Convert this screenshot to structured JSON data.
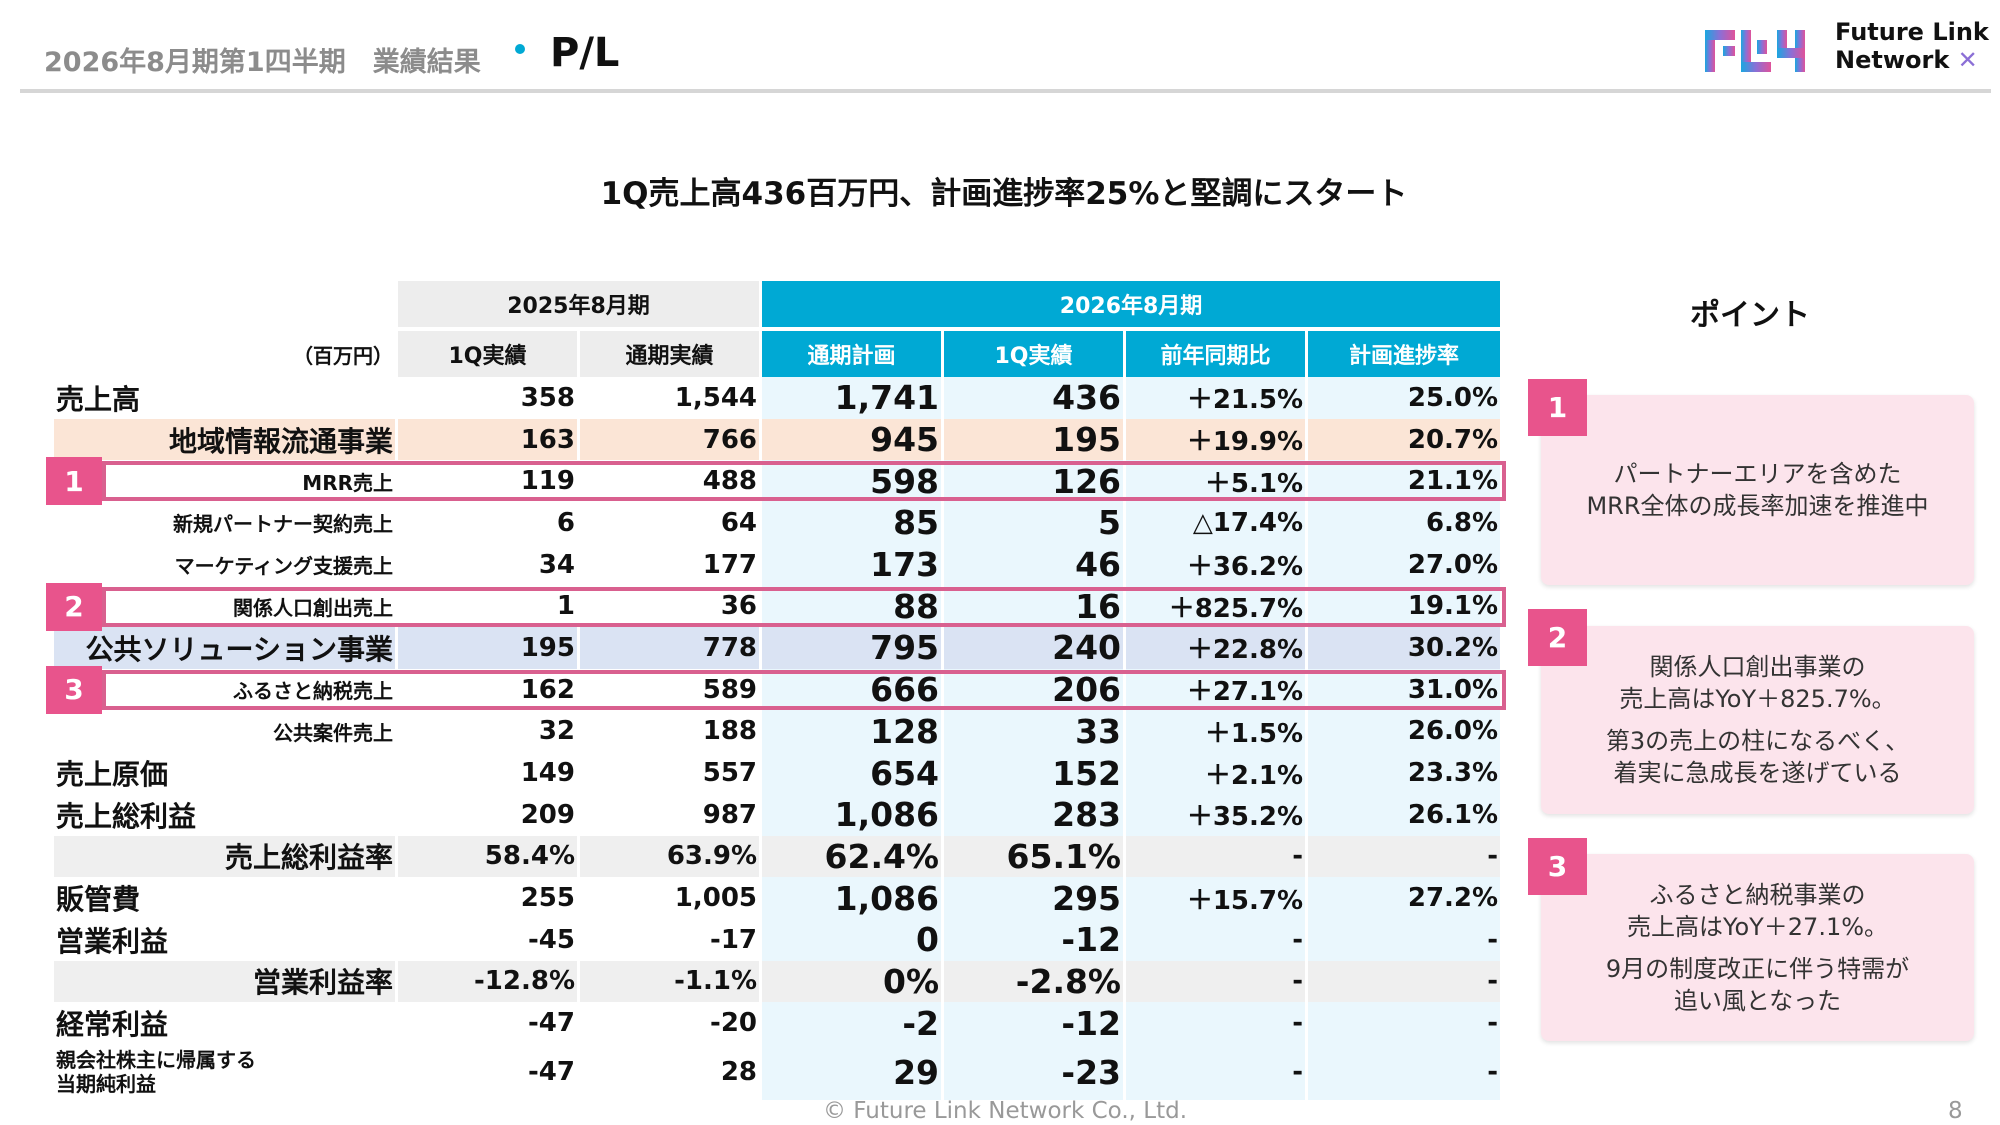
{
  "header": {
    "title": "2026年8月期第1四半期　業績結果",
    "section": "P/L",
    "logo_text_1": "Future Link",
    "logo_text_2": "Network"
  },
  "headline": "1Q売上高436百万円、計画進捗率25%と堅調にスタート",
  "table": {
    "unit": "（百万円）",
    "group_2025": "2025年8月期",
    "group_2026": "2026年8月期",
    "columns": [
      "1Q実績",
      "通期実績",
      "通期計画",
      "1Q実績",
      "前年同期比",
      "計画進捗率"
    ],
    "rows": [
      {
        "label": "売上高",
        "values": [
          "358",
          "1,544",
          "1,741",
          "436",
          "＋21.5%",
          "25.0%"
        ]
      },
      {
        "label": "地域情報流通事業",
        "values": [
          "163",
          "766",
          "945",
          "195",
          "＋19.9%",
          "20.7%"
        ]
      },
      {
        "label": "MRR売上",
        "values": [
          "119",
          "488",
          "598",
          "126",
          "＋5.1%",
          "21.1%"
        ]
      },
      {
        "label": "新規パートナー契約売上",
        "values": [
          "6",
          "64",
          "85",
          "5",
          "△17.4%",
          "6.8%"
        ]
      },
      {
        "label": "マーケティング支援売上",
        "values": [
          "34",
          "177",
          "173",
          "46",
          "＋36.2%",
          "27.0%"
        ]
      },
      {
        "label": "関係人口創出売上",
        "values": [
          "1",
          "36",
          "88",
          "16",
          "＋825.7%",
          "19.1%"
        ]
      },
      {
        "label": "公共ソリューション事業",
        "values": [
          "195",
          "778",
          "795",
          "240",
          "＋22.8%",
          "30.2%"
        ]
      },
      {
        "label": "ふるさと納税売上",
        "values": [
          "162",
          "589",
          "666",
          "206",
          "＋27.1%",
          "31.0%"
        ]
      },
      {
        "label": "公共案件売上",
        "values": [
          "32",
          "188",
          "128",
          "33",
          "＋1.5%",
          "26.0%"
        ]
      },
      {
        "label": "売上原価",
        "values": [
          "149",
          "557",
          "654",
          "152",
          "＋2.1%",
          "23.3%"
        ]
      },
      {
        "label": "売上総利益",
        "values": [
          "209",
          "987",
          "1,086",
          "283",
          "＋35.2%",
          "26.1%"
        ]
      },
      {
        "label": "売上総利益率",
        "values": [
          "58.4%",
          "63.9%",
          "62.4%",
          "65.1%",
          "-",
          "-"
        ]
      },
      {
        "label": "販管費",
        "values": [
          "255",
          "1,005",
          "1,086",
          "295",
          "＋15.7%",
          "27.2%"
        ]
      },
      {
        "label": "営業利益",
        "values": [
          "-45",
          "-17",
          "0",
          "-12",
          "-",
          "-"
        ]
      },
      {
        "label": "営業利益率",
        "values": [
          "-12.8%",
          "-1.1%",
          "0%",
          "-2.8%",
          "-",
          "-"
        ]
      },
      {
        "label": "経常利益",
        "values": [
          "-47",
          "-20",
          "-2",
          "-12",
          "-",
          "-"
        ]
      },
      {
        "label_1": "親会社株主に帰属する",
        "label_2": "当期純利益",
        "values": [
          "-47",
          "28",
          "29",
          "-23",
          "-",
          "-"
        ]
      }
    ]
  },
  "highlights": [
    "1",
    "2",
    "3"
  ],
  "points": {
    "title": "ポイント",
    "cards": [
      {
        "badge": "1",
        "lines": [
          "パートナーエリアを含めた",
          "MRR全体の成長率加速を推進中"
        ]
      },
      {
        "badge": "2",
        "lines": [
          "関係人口創出事業の",
          "売上高はYoY＋825.7%。",
          "第3の売上の柱になるべく、",
          "着実に急成長を遂げている"
        ]
      },
      {
        "badge": "3",
        "lines": [
          "ふるさと納税事業の",
          "売上高はYoY＋27.1%。",
          "9月の制度改正に伴う特需が",
          "追い風となった"
        ]
      }
    ]
  },
  "footer": "© Future Link Network Co., Ltd.",
  "page_number": "8",
  "colors": {
    "accent_blue": "#00a9d4",
    "highlight_pink": "#e8548c",
    "card_pink": "#fce4ec",
    "segment_peach": "#fbe5d6",
    "segment_lavender": "#dae3f3"
  }
}
